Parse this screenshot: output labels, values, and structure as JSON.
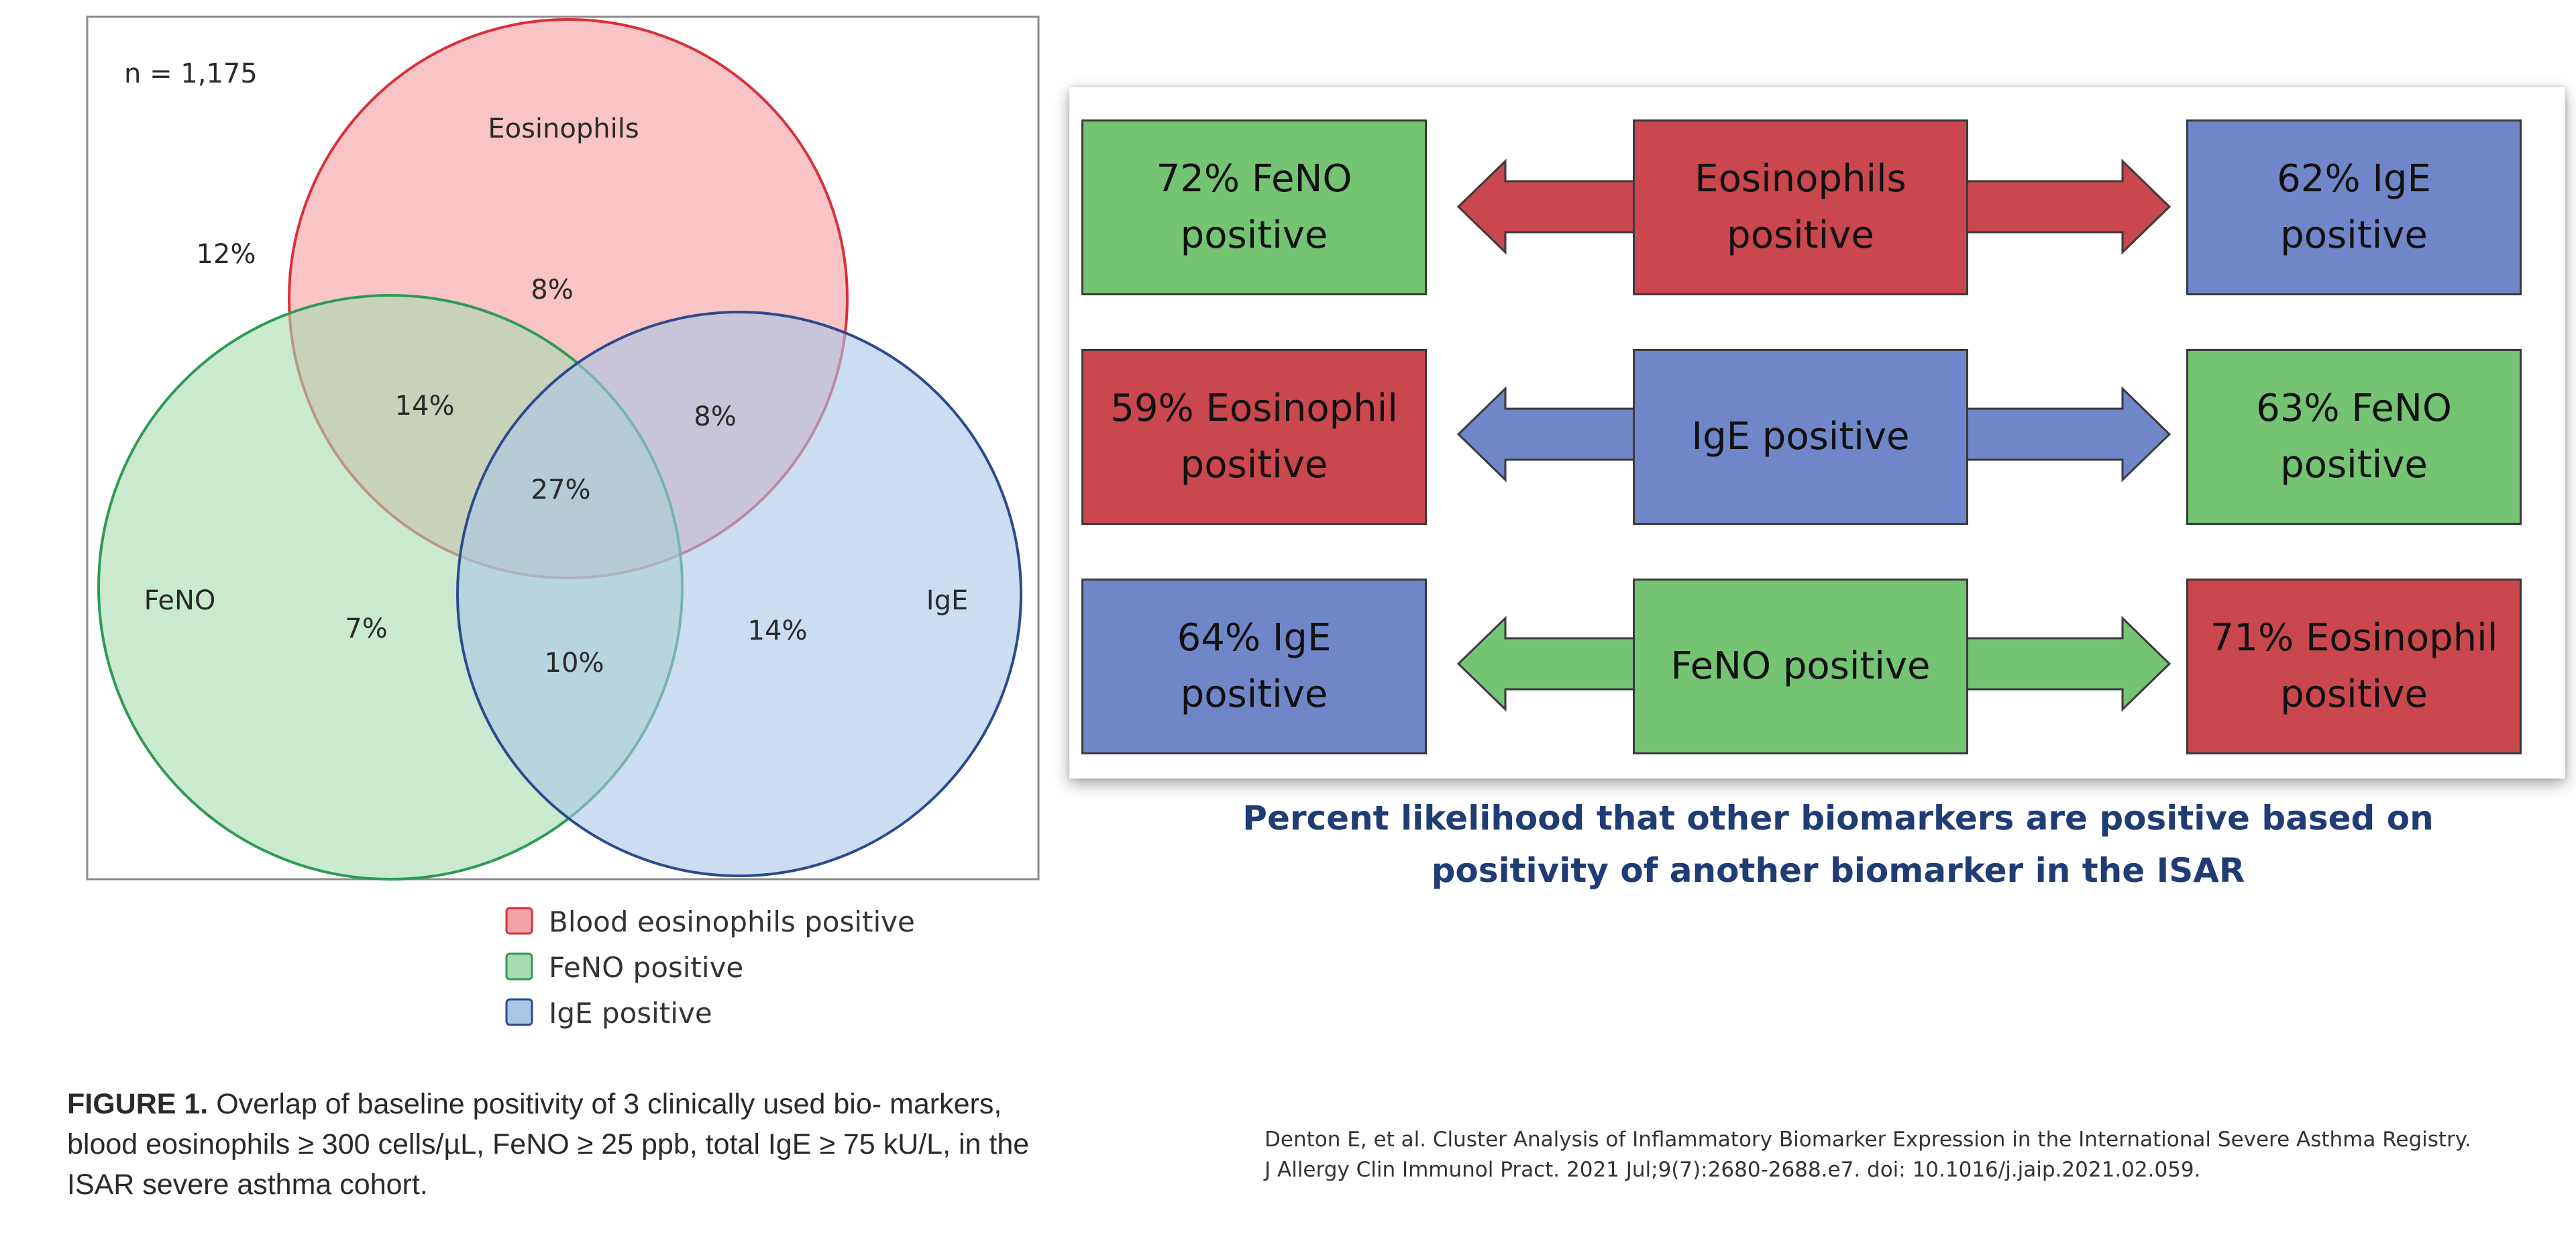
{
  "venn": {
    "n_label": "n = 1,175",
    "outside_pct": "12%",
    "sets": {
      "eosinophils": {
        "label": "Eosinophils",
        "fill": "#f4a4a6",
        "stroke": "#d9303a"
      },
      "feno": {
        "label": "FeNO",
        "fill": "#a6dcb0",
        "stroke": "#2e9a55"
      },
      "ige": {
        "label": "IgE",
        "fill": "#a9c6e6",
        "stroke": "#2c4a8e"
      }
    },
    "regions": {
      "eos_only": "8%",
      "eos_feno": "14%",
      "eos_ige": "8%",
      "all_three": "27%",
      "feno_only": "7%",
      "feno_ige": "10%",
      "ige_only": "14%"
    },
    "legend": [
      {
        "label": "Blood eosinophils positive",
        "fill": "#f4a4a6",
        "stroke": "#d9303a"
      },
      {
        "label": "FeNO positive",
        "fill": "#a6dcb0",
        "stroke": "#2e9a55"
      },
      {
        "label": "IgE positive",
        "fill": "#a9c6e6",
        "stroke": "#2c4a8e"
      }
    ]
  },
  "figure_caption": {
    "label": "FIGURE 1.",
    "text": "Overlap of baseline positivity of 3 clinically used bio- markers, blood eosinophils ≥ 300 cells/µL, FeNO ≥ 25 ppb, total IgE ≥ 75 kU/L, in the ISAR severe asthma cohort."
  },
  "likelihood": {
    "rows": [
      {
        "left": "72% FeNO\npositive",
        "center": "Eosinophils\npositive",
        "right": "62% IgE\npositive"
      },
      {
        "left": "59% Eosinophil\npositive",
        "center": "IgE positive",
        "right": "63% FeNO\npositive"
      },
      {
        "left": "64% IgE\npositive",
        "center": "FeNO positive",
        "right": "71% Eosinophil\npositive"
      }
    ],
    "colors": {
      "green": "#74c474",
      "red": "#c9474d",
      "blue": "#6f86c8"
    },
    "caption": "Percent likelihood that other biomarkers are positive based on positivity of another biomarker in the ISAR"
  },
  "citation": "Denton E, et al. Cluster Analysis of Inflammatory Biomarker Expression in the International Severe Asthma Registry. J Allergy Clin Immunol Pract. 2021 Jul;9(7):2680-2688.e7. doi: 10.1016/j.jaip.2021.02.059."
}
